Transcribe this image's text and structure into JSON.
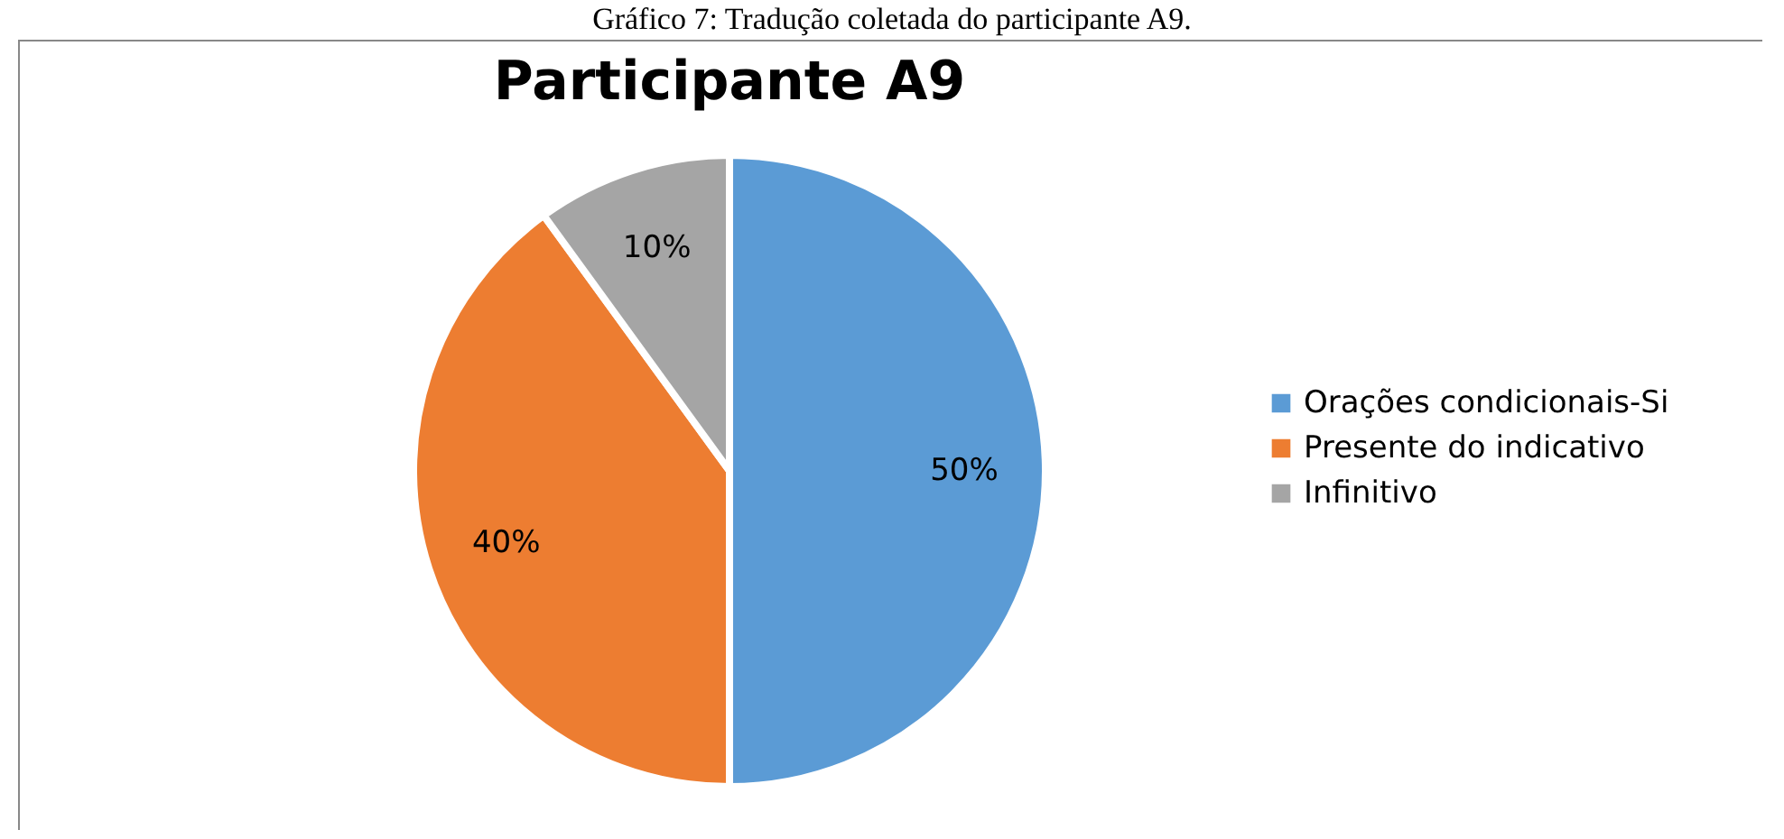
{
  "chart_data": {
    "type": "pie",
    "title": "Participante A9",
    "annotations": [
      "Gráfico 7: Tradução coletada do participante A9."
    ],
    "categories": [
      "Orações condicionais-Si",
      "Presente do indicativo",
      "Infinitivo"
    ],
    "values": [
      50,
      40,
      10
    ],
    "colors": [
      "#5b9bd5",
      "#ed7d31",
      "#a5a5a5"
    ],
    "value_labels": [
      "50%",
      "40%",
      "10%"
    ],
    "legend": "right"
  }
}
